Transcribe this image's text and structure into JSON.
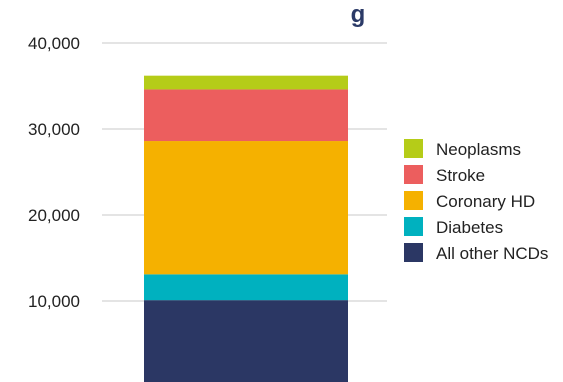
{
  "chart_data": {
    "type": "bar",
    "stacked": true,
    "title_partial": "g",
    "categories": [
      ""
    ],
    "ylim": [
      0,
      40000
    ],
    "yticks": [
      "10,000",
      "20,000",
      "30,000",
      "40,000"
    ],
    "ytick_values": [
      10000,
      20000,
      30000,
      40000
    ],
    "grid": true,
    "legend_position": "right",
    "series": [
      {
        "name": "All other NCDs",
        "values": [
          10100
        ],
        "color": "#2b3764"
      },
      {
        "name": "Diabetes",
        "values": [
          3000
        ],
        "color": "#00b1bf"
      },
      {
        "name": "Coronary HD",
        "values": [
          15500
        ],
        "color": "#f5b100"
      },
      {
        "name": "Stroke",
        "values": [
          6000
        ],
        "color": "#ec5e5e"
      },
      {
        "name": "Neoplasms",
        "values": [
          1600
        ],
        "color": "#b5cc18"
      }
    ],
    "legend_order": [
      "Neoplasms",
      "Stroke",
      "Coronary HD",
      "Diabetes",
      "All other NCDs"
    ]
  }
}
